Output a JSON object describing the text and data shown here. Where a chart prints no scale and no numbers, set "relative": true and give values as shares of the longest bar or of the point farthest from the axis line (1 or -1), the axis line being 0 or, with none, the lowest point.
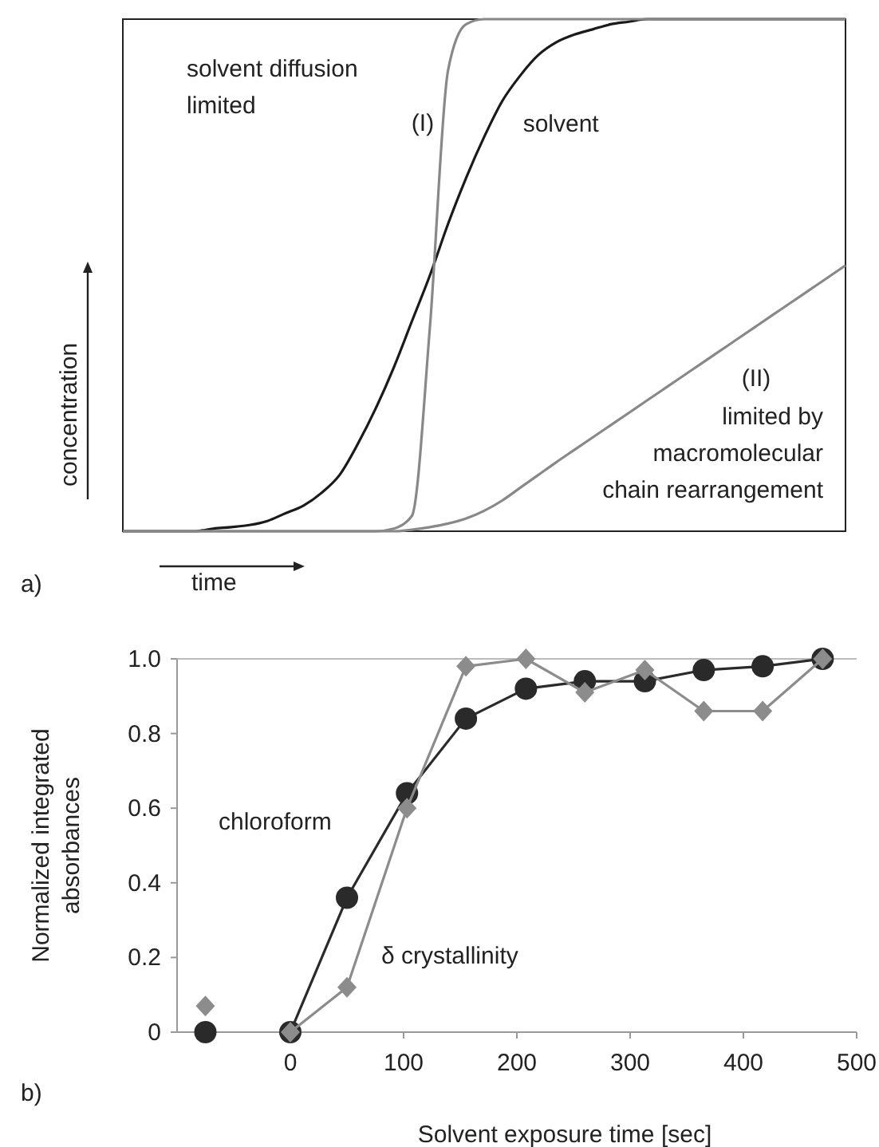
{
  "chart_data": [
    {
      "type": "line",
      "relative": true,
      "xlabel": "time",
      "ylabel": "concentration",
      "marker": "none",
      "categories": [
        null,
        null,
        null,
        null,
        null,
        null,
        null,
        null,
        null,
        null,
        null,
        null,
        null,
        null,
        null,
        null,
        null,
        null,
        null,
        null,
        null,
        null,
        null,
        null,
        null,
        null,
        null,
        null,
        null,
        null,
        null,
        null,
        null,
        null,
        null,
        null,
        null,
        null,
        null,
        null,
        null
      ],
      "series": [
        {
          "name": "solvent",
          "color": "#1a1a1a",
          "values": [
            0,
            0,
            0,
            0,
            0,
            0.005,
            0.008,
            0.012,
            0.02,
            0.035,
            0.05,
            0.075,
            0.11,
            0.17,
            0.24,
            0.32,
            0.41,
            0.5,
            0.6,
            0.69,
            0.77,
            0.84,
            0.89,
            0.93,
            0.955,
            0.97,
            0.98,
            0.99,
            0.995,
            1,
            1,
            1,
            1,
            1,
            1,
            1,
            1,
            1,
            1,
            1,
            1
          ]
        },
        {
          "color": "#888888",
          "values": [
            0,
            0,
            0,
            0,
            0,
            0,
            0,
            0,
            0,
            0,
            0,
            0,
            0,
            0,
            0,
            0.005,
            0.03,
            0.4,
            0.9,
            0.99,
            1,
            1,
            1,
            1,
            1,
            1,
            1,
            1,
            1,
            1,
            1,
            1,
            1,
            1,
            1,
            1,
            1,
            1,
            1,
            1,
            1
          ]
        },
        {
          "color": "#888888",
          "values": [
            0,
            0,
            0,
            0,
            0,
            0,
            0,
            0,
            0,
            0,
            0,
            0,
            0,
            0,
            0,
            0,
            0.003,
            0.008,
            0.015,
            0.025,
            0.04,
            0.06,
            0.085,
            0.11,
            0.135,
            0.159,
            0.183,
            0.207,
            0.231,
            0.255,
            0.279,
            0.303,
            0.327,
            0.351,
            0.375,
            0.399,
            0.423,
            0.447,
            0.471,
            0.495,
            0.519
          ]
        }
      ],
      "annotations": [
        "solvent diffusion limited",
        "(I)",
        "(II)",
        "limited by macromolecular chain rearrangement",
        "a)"
      ]
    },
    {
      "type": "line",
      "xlabel": "Solvent exposure time [sec]",
      "ylabel": "Normalized integrated absorbances",
      "xlim": [
        -100,
        500
      ],
      "xticks": [
        0,
        100,
        200,
        300,
        400,
        500
      ],
      "ylim": [
        0,
        1
      ],
      "yticks": [
        0,
        0.2,
        0.4,
        0.6,
        0.8,
        {
          "value": 1,
          "label": "1.0"
        }
      ],
      "series": [
        {
          "name": "chloroform",
          "color": "#2a2a2a",
          "marker": "circle",
          "x": [
            0,
            50,
            103,
            155,
            208,
            260,
            313,
            365,
            417,
            470
          ],
          "values": [
            0,
            0.36,
            0.64,
            0.84,
            0.92,
            0.94,
            0.94,
            0.97,
            0.98,
            1.0
          ]
        },
        {
          "name": "δ crystallinity",
          "color": "#8c8c8c",
          "marker": "diamond",
          "x": [
            0,
            50,
            103,
            155,
            208,
            260,
            313,
            365,
            417,
            470
          ],
          "values": [
            0,
            0.12,
            0.6,
            0.98,
            1.0,
            0.91,
            0.97,
            0.86,
            0.86,
            1.0
          ]
        },
        {
          "type": "scatter",
          "color": "#2a2a2a",
          "marker": "circle",
          "x": [
            -75
          ],
          "values": [
            0
          ]
        },
        {
          "type": "scatter",
          "color": "#8c8c8c",
          "marker": "diamond",
          "x": [
            -75
          ],
          "values": [
            0.07
          ]
        }
      ],
      "annotations": [
        "b)"
      ]
    }
  ]
}
